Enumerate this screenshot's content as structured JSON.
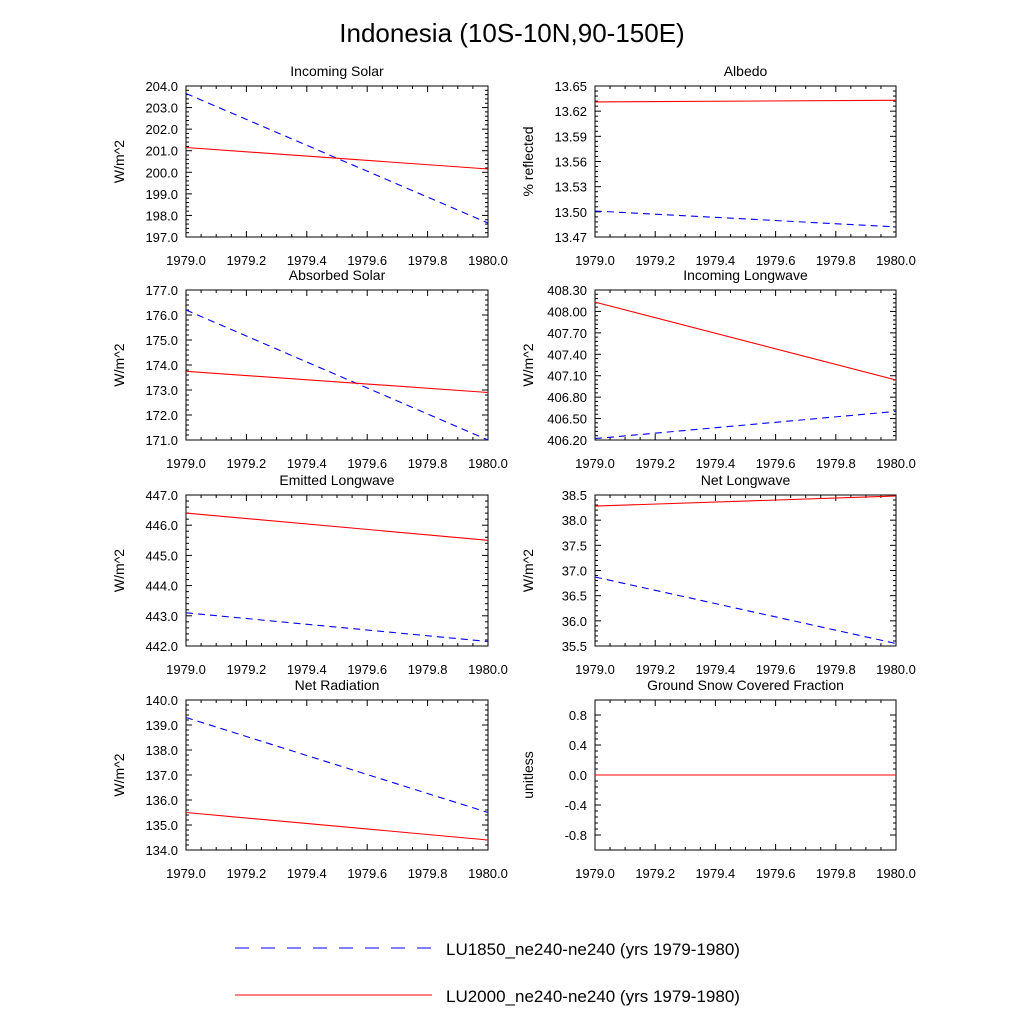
{
  "figure": {
    "title": "Indonesia (10S-10N,90-150E)",
    "legend": [
      {
        "label": "LU1850_ne240-ne240 (yrs 1979-1980)",
        "color": "#0000ff",
        "style": "dashed"
      },
      {
        "label": "LU2000_ne240-ne240 (yrs 1979-1980)",
        "color": "#ff0000",
        "style": "solid"
      }
    ]
  },
  "chart_data": [
    {
      "type": "line",
      "title": "Incoming Solar",
      "ylabel": "W/m^2",
      "xlim": [
        1979.0,
        1980.0
      ],
      "ylim": [
        197.0,
        204.0
      ],
      "xticks": [
        "1979.0",
        "1979.2",
        "1979.4",
        "1979.6",
        "1979.8",
        "1980.0"
      ],
      "yticks": [
        "197.0",
        "198.0",
        "199.0",
        "200.0",
        "201.0",
        "202.0",
        "203.0",
        "204.0"
      ],
      "series": [
        {
          "color": "#0000ff",
          "style": "dashed",
          "x": [
            1979.0,
            1980.0
          ],
          "y": [
            203.65,
            197.65
          ]
        },
        {
          "color": "#ff0000",
          "style": "solid",
          "x": [
            1979.0,
            1980.0
          ],
          "y": [
            201.15,
            200.15
          ]
        }
      ]
    },
    {
      "type": "line",
      "title": "Albedo",
      "ylabel": "% reflected",
      "xlim": [
        1979.0,
        1980.0
      ],
      "ylim": [
        13.47,
        13.65
      ],
      "xticks": [
        "1979.0",
        "1979.2",
        "1979.4",
        "1979.6",
        "1979.8",
        "1980.0"
      ],
      "yticks": [
        "13.47",
        "13.50",
        "13.53",
        "13.56",
        "13.59",
        "13.62",
        "13.65"
      ],
      "series": [
        {
          "color": "#0000ff",
          "style": "dashed",
          "x": [
            1979.0,
            1980.0
          ],
          "y": [
            13.501,
            13.482
          ]
        },
        {
          "color": "#ff0000",
          "style": "solid",
          "x": [
            1979.0,
            1980.0
          ],
          "y": [
            13.631,
            13.633
          ]
        }
      ]
    },
    {
      "type": "line",
      "title": "Absorbed Solar",
      "ylabel": "W/m^2",
      "xlim": [
        1979.0,
        1980.0
      ],
      "ylim": [
        171.0,
        177.0
      ],
      "xticks": [
        "1979.0",
        "1979.2",
        "1979.4",
        "1979.6",
        "1979.8",
        "1980.0"
      ],
      "yticks": [
        "171.0",
        "172.0",
        "173.0",
        "174.0",
        "175.0",
        "176.0",
        "177.0"
      ],
      "series": [
        {
          "color": "#0000ff",
          "style": "dashed",
          "x": [
            1979.0,
            1980.0
          ],
          "y": [
            176.2,
            171.0
          ]
        },
        {
          "color": "#ff0000",
          "style": "solid",
          "x": [
            1979.0,
            1980.0
          ],
          "y": [
            173.75,
            172.9
          ]
        }
      ]
    },
    {
      "type": "line",
      "title": "Incoming Longwave",
      "ylabel": "W/m^2",
      "xlim": [
        1979.0,
        1980.0
      ],
      "ylim": [
        406.2,
        408.3
      ],
      "xticks": [
        "1979.0",
        "1979.2",
        "1979.4",
        "1979.6",
        "1979.8",
        "1980.0"
      ],
      "yticks": [
        "406.20",
        "406.50",
        "406.80",
        "407.10",
        "407.40",
        "407.70",
        "408.00",
        "408.30"
      ],
      "series": [
        {
          "color": "#0000ff",
          "style": "dashed",
          "x": [
            1979.0,
            1980.0
          ],
          "y": [
            406.22,
            406.6
          ]
        },
        {
          "color": "#ff0000",
          "style": "solid",
          "x": [
            1979.0,
            1980.0
          ],
          "y": [
            408.13,
            407.04
          ]
        }
      ]
    },
    {
      "type": "line",
      "title": "Emitted Longwave",
      "ylabel": "W/m^2",
      "xlim": [
        1979.0,
        1980.0
      ],
      "ylim": [
        442.0,
        447.0
      ],
      "xticks": [
        "1979.0",
        "1979.2",
        "1979.4",
        "1979.6",
        "1979.8",
        "1980.0"
      ],
      "yticks": [
        "442.0",
        "443.0",
        "444.0",
        "445.0",
        "446.0",
        "447.0"
      ],
      "series": [
        {
          "color": "#0000ff",
          "style": "dashed",
          "x": [
            1979.0,
            1980.0
          ],
          "y": [
            443.1,
            442.15
          ]
        },
        {
          "color": "#ff0000",
          "style": "solid",
          "x": [
            1979.0,
            1980.0
          ],
          "y": [
            446.4,
            445.5
          ]
        }
      ]
    },
    {
      "type": "line",
      "title": "Net Longwave",
      "ylabel": "W/m^2",
      "xlim": [
        1979.0,
        1980.0
      ],
      "ylim": [
        35.5,
        38.5
      ],
      "xticks": [
        "1979.0",
        "1979.2",
        "1979.4",
        "1979.6",
        "1979.8",
        "1980.0"
      ],
      "yticks": [
        "35.5",
        "36.0",
        "36.5",
        "37.0",
        "37.5",
        "38.0",
        "38.5"
      ],
      "series": [
        {
          "color": "#0000ff",
          "style": "dashed",
          "x": [
            1979.0,
            1980.0
          ],
          "y": [
            36.87,
            35.55
          ]
        },
        {
          "color": "#ff0000",
          "style": "solid",
          "x": [
            1979.0,
            1980.0
          ],
          "y": [
            38.28,
            38.48
          ]
        }
      ]
    },
    {
      "type": "line",
      "title": "Net Radiation",
      "ylabel": "W/m^2",
      "xlim": [
        1979.0,
        1980.0
      ],
      "ylim": [
        134.0,
        140.0
      ],
      "xticks": [
        "1979.0",
        "1979.2",
        "1979.4",
        "1979.6",
        "1979.8",
        "1980.0"
      ],
      "yticks": [
        "134.0",
        "135.0",
        "136.0",
        "137.0",
        "138.0",
        "139.0",
        "140.0"
      ],
      "series": [
        {
          "color": "#0000ff",
          "style": "dashed",
          "x": [
            1979.0,
            1980.0
          ],
          "y": [
            139.3,
            135.5
          ]
        },
        {
          "color": "#ff0000",
          "style": "solid",
          "x": [
            1979.0,
            1980.0
          ],
          "y": [
            135.5,
            134.4
          ]
        }
      ]
    },
    {
      "type": "line",
      "title": "Ground Snow Covered Fraction",
      "ylabel": "unitless",
      "xlim": [
        1979.0,
        1980.0
      ],
      "ylim": [
        -1.0,
        1.0
      ],
      "xticks": [
        "1979.0",
        "1979.2",
        "1979.4",
        "1979.6",
        "1979.8",
        "1980.0"
      ],
      "yticks": [
        "-0.8",
        "-0.4",
        "0.0",
        "0.4",
        "0.8"
      ],
      "series": [
        {
          "color": "#0000ff",
          "style": "dashed",
          "x": [
            1979.0,
            1980.0
          ],
          "y": [
            0.0,
            0.0
          ]
        },
        {
          "color": "#ff0000",
          "style": "solid",
          "x": [
            1979.0,
            1980.0
          ],
          "y": [
            0.0,
            0.0
          ]
        }
      ]
    }
  ]
}
